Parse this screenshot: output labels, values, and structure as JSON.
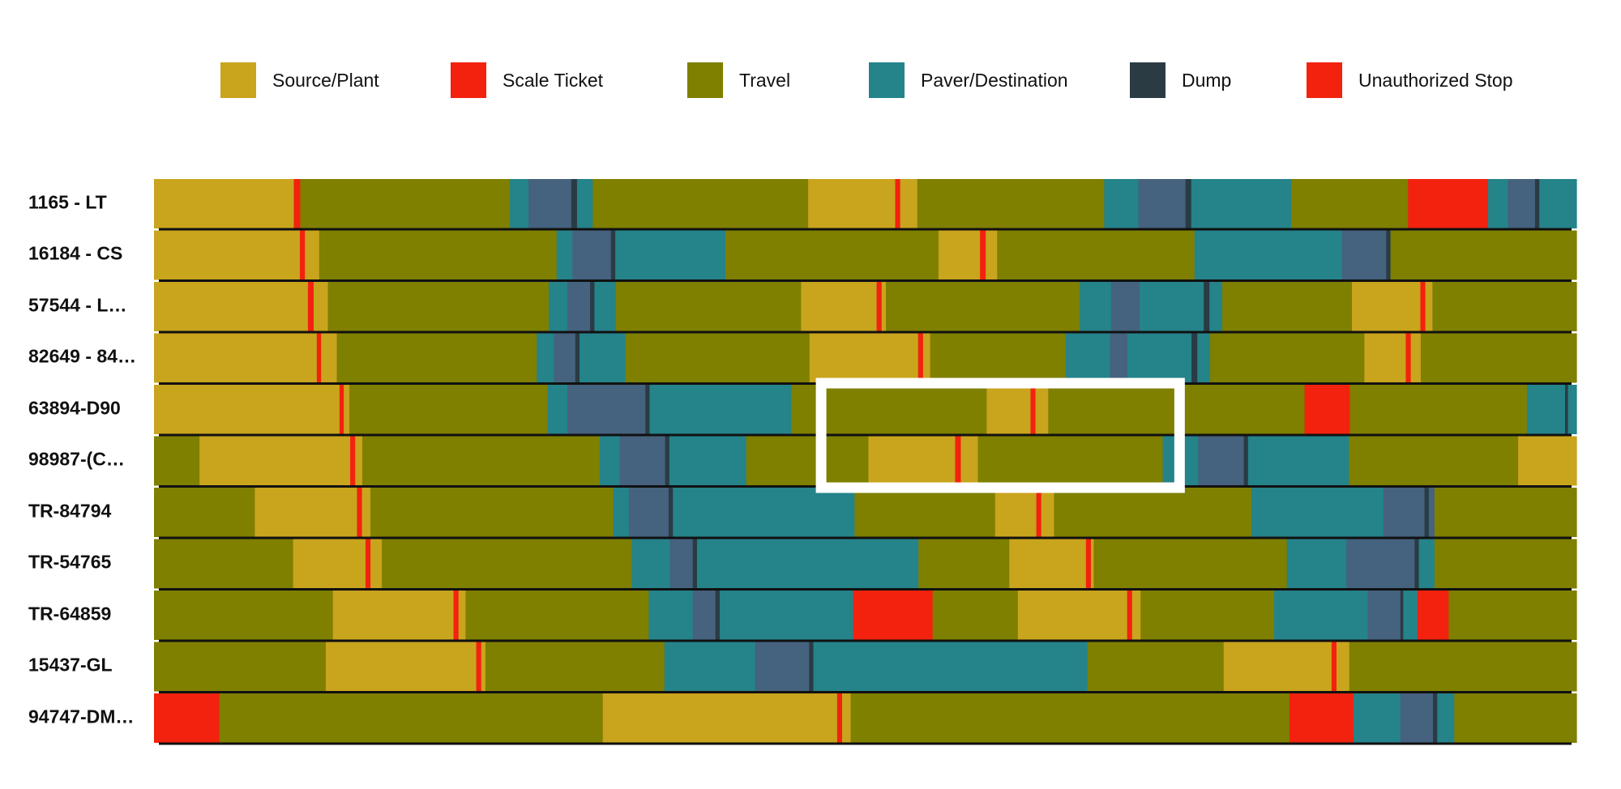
{
  "chart_data": {
    "type": "bar",
    "subtype": "horizontal-stacked-timeline",
    "title": "",
    "xlabel": "",
    "ylabel": "",
    "xlim": [
      0,
      100
    ],
    "grid": false,
    "legend_position": "top",
    "legend": [
      {
        "key": "source",
        "name": "Source/Plant",
        "color": "#C9A41D"
      },
      {
        "key": "scale",
        "name": "Scale Ticket",
        "color": "#F2220E"
      },
      {
        "key": "travel",
        "name": "Travel",
        "color": "#7F7F00"
      },
      {
        "key": "paver",
        "name": "Paver/Destination",
        "color": "#25838A"
      },
      {
        "key": "dump",
        "name": "Dump",
        "color": "#2A3B44"
      },
      {
        "key": "stop",
        "name": "Unauthorized Stop",
        "color": "#F2220E"
      }
    ],
    "segment_colors": {
      "source": "#C9A41D",
      "scale": "#F2220E",
      "travel": "#7F7F00",
      "paver": "#25838A",
      "paver_alt": "#45627E",
      "dump": "#2A3B44",
      "stop": "#F2220E"
    },
    "rows": [
      {
        "label": "1165 - LT",
        "segments": [
          [
            "source",
            9.8
          ],
          [
            "scale",
            0.45
          ],
          [
            "travel",
            14.7
          ],
          [
            "paver",
            1.3
          ],
          [
            "paver_alt",
            3.0
          ],
          [
            "dump",
            0.4
          ],
          [
            "paver",
            1.1
          ],
          [
            "travel",
            15.1
          ],
          [
            "source",
            6.1
          ],
          [
            "scale",
            0.35
          ],
          [
            "source",
            1.2
          ],
          [
            "travel",
            13.1
          ],
          [
            "paver",
            2.4
          ],
          [
            "paver_alt",
            3.3
          ],
          [
            "dump",
            0.4
          ],
          [
            "paver",
            7.0
          ],
          [
            "travel",
            8.2
          ],
          [
            "stop",
            5.6
          ],
          [
            "paver",
            1.4
          ],
          [
            "paver_alt",
            1.9
          ],
          [
            "dump",
            0.3
          ],
          [
            "paver",
            2.6
          ]
        ]
      },
      {
        "label": "16184 - CS",
        "segments": [
          [
            "source",
            10.2
          ],
          [
            "scale",
            0.35
          ],
          [
            "source",
            1.0
          ],
          [
            "travel",
            16.6
          ],
          [
            "paver",
            1.1
          ],
          [
            "paver_alt",
            2.7
          ],
          [
            "dump",
            0.3
          ],
          [
            "paver",
            7.7
          ],
          [
            "travel",
            14.9
          ],
          [
            "source",
            2.9
          ],
          [
            "scale",
            0.4
          ],
          [
            "source",
            0.8
          ],
          [
            "travel",
            13.8
          ],
          [
            "paver",
            10.3
          ],
          [
            "paver_alt",
            3.1
          ],
          [
            "dump",
            0.3
          ],
          [
            "travel",
            13.0
          ]
        ]
      },
      {
        "label": "57544 - L…",
        "segments": [
          [
            "source",
            10.8
          ],
          [
            "scale",
            0.4
          ],
          [
            "source",
            1.0
          ],
          [
            "travel",
            15.5
          ],
          [
            "paver",
            1.3
          ],
          [
            "paver_alt",
            1.6
          ],
          [
            "dump",
            0.3
          ],
          [
            "paver",
            1.5
          ],
          [
            "travel",
            13.0
          ],
          [
            "source",
            5.3
          ],
          [
            "scale",
            0.35
          ],
          [
            "source",
            0.3
          ],
          [
            "travel",
            13.6
          ],
          [
            "paver",
            2.2
          ],
          [
            "paver_alt",
            2.0
          ],
          [
            "paver",
            4.5
          ],
          [
            "dump",
            0.4
          ],
          [
            "paver",
            0.9
          ],
          [
            "travel",
            9.1
          ],
          [
            "source",
            4.8
          ],
          [
            "scale",
            0.35
          ],
          [
            "source",
            0.5
          ],
          [
            "travel",
            10.1
          ]
        ]
      },
      {
        "label": "82649 - 84…",
        "segments": [
          [
            "source",
            11.4
          ],
          [
            "scale",
            0.3
          ],
          [
            "source",
            1.1
          ],
          [
            "travel",
            14.0
          ],
          [
            "paver",
            1.2
          ],
          [
            "paver_alt",
            1.5
          ],
          [
            "dump",
            0.3
          ],
          [
            "paver",
            3.2
          ],
          [
            "travel",
            12.9
          ],
          [
            "source",
            7.6
          ],
          [
            "scale",
            0.35
          ],
          [
            "source",
            0.5
          ],
          [
            "travel",
            9.5
          ],
          [
            "paver",
            3.1
          ],
          [
            "paver_alt",
            1.2
          ],
          [
            "paver",
            4.5
          ],
          [
            "dump",
            0.4
          ],
          [
            "paver",
            0.9
          ],
          [
            "travel",
            10.8
          ],
          [
            "source",
            2.9
          ],
          [
            "scale",
            0.35
          ],
          [
            "source",
            0.7
          ],
          [
            "travel",
            10.9
          ]
        ]
      },
      {
        "label": "63894-D90",
        "segments": [
          [
            "source",
            13.1
          ],
          [
            "scale",
            0.3
          ],
          [
            "source",
            0.4
          ],
          [
            "travel",
            14.0
          ],
          [
            "paver",
            1.4
          ],
          [
            "paver_alt",
            5.5
          ],
          [
            "dump",
            0.3
          ],
          [
            "paver",
            10.0
          ],
          [
            "travel",
            13.8
          ],
          [
            "source",
            3.1
          ],
          [
            "scale",
            0.35
          ],
          [
            "source",
            0.9
          ],
          [
            "travel",
            9.2
          ],
          [
            "travel",
            8.9
          ],
          [
            "stop",
            3.2
          ],
          [
            "travel",
            12.5
          ],
          [
            "paver",
            2.7
          ],
          [
            "dump",
            0.2
          ],
          [
            "paver",
            0.6
          ]
        ]
      },
      {
        "label": "98987-(C…",
        "segments": [
          [
            "travel",
            3.2
          ],
          [
            "source",
            10.6
          ],
          [
            "scale",
            0.35
          ],
          [
            "source",
            0.5
          ],
          [
            "travel",
            16.7
          ],
          [
            "paver",
            1.4
          ],
          [
            "paver_alt",
            3.2
          ],
          [
            "dump",
            0.3
          ],
          [
            "paver",
            5.4
          ],
          [
            "travel",
            8.6
          ],
          [
            "source",
            6.1
          ],
          [
            "scale",
            0.4
          ],
          [
            "source",
            1.2
          ],
          [
            "travel",
            13.0
          ],
          [
            "paver",
            2.5
          ],
          [
            "paver_alt",
            3.2
          ],
          [
            "dump",
            0.3
          ],
          [
            "paver",
            7.1
          ],
          [
            "travel",
            11.9
          ],
          [
            "source",
            4.1
          ]
        ]
      },
      {
        "label": "TR-84794",
        "segments": [
          [
            "travel",
            7.1
          ],
          [
            "source",
            7.2
          ],
          [
            "scale",
            0.35
          ],
          [
            "source",
            0.6
          ],
          [
            "travel",
            17.1
          ],
          [
            "paver",
            1.1
          ],
          [
            "paver_alt",
            2.8
          ],
          [
            "dump",
            0.3
          ],
          [
            "paver",
            12.8
          ],
          [
            "travel",
            9.9
          ],
          [
            "source",
            2.9
          ],
          [
            "scale",
            0.35
          ],
          [
            "source",
            0.9
          ],
          [
            "travel",
            13.9
          ],
          [
            "paver",
            9.3
          ],
          [
            "paver_alt",
            2.9
          ],
          [
            "dump",
            0.3
          ],
          [
            "paver_alt",
            0.4
          ],
          [
            "travel",
            10.0
          ]
        ]
      },
      {
        "label": "TR-54765",
        "segments": [
          [
            "travel",
            9.8
          ],
          [
            "source",
            5.1
          ],
          [
            "scale",
            0.35
          ],
          [
            "source",
            0.8
          ],
          [
            "travel",
            17.6
          ],
          [
            "paver",
            2.7
          ],
          [
            "paver_alt",
            1.6
          ],
          [
            "dump",
            0.3
          ],
          [
            "paver",
            15.6
          ],
          [
            "travel",
            6.4
          ],
          [
            "source",
            5.4
          ],
          [
            "scale",
            0.35
          ],
          [
            "source",
            0.2
          ],
          [
            "travel",
            13.6
          ],
          [
            "paver",
            4.2
          ],
          [
            "paver_alt",
            4.8
          ],
          [
            "dump",
            0.3
          ],
          [
            "paver",
            1.1
          ],
          [
            "travel",
            10.0
          ]
        ]
      },
      {
        "label": "TR-64859",
        "segments": [
          [
            "travel",
            12.6
          ],
          [
            "source",
            8.5
          ],
          [
            "scale",
            0.35
          ],
          [
            "source",
            0.5
          ],
          [
            "travel",
            12.9
          ],
          [
            "paver",
            3.1
          ],
          [
            "paver_alt",
            1.6
          ],
          [
            "dump",
            0.3
          ],
          [
            "paver",
            9.4
          ],
          [
            "stop",
            5.6
          ],
          [
            "travel",
            6.0
          ],
          [
            "source",
            7.7
          ],
          [
            "scale",
            0.35
          ],
          [
            "source",
            0.6
          ],
          [
            "travel",
            9.4
          ],
          [
            "paver",
            6.6
          ],
          [
            "paver_alt",
            2.3
          ],
          [
            "dump",
            0.2
          ],
          [
            "paver",
            1.0
          ],
          [
            "stop",
            2.2
          ],
          [
            "travel",
            9.0
          ]
        ]
      },
      {
        "label": "15437-GL",
        "segments": [
          [
            "travel",
            12.1
          ],
          [
            "source",
            10.6
          ],
          [
            "scale",
            0.35
          ],
          [
            "source",
            0.3
          ],
          [
            "travel",
            12.6
          ],
          [
            "paver",
            6.4
          ],
          [
            "paver_alt",
            3.8
          ],
          [
            "dump",
            0.3
          ],
          [
            "paver",
            19.3
          ],
          [
            "travel",
            9.6
          ],
          [
            "source",
            7.6
          ],
          [
            "scale",
            0.35
          ],
          [
            "source",
            0.9
          ],
          [
            "travel",
            16.0
          ]
        ]
      },
      {
        "label": "94747-DM…",
        "segments": [
          [
            "stop",
            4.6
          ],
          [
            "travel",
            27.0
          ],
          [
            "source",
            16.5
          ],
          [
            "scale",
            0.35
          ],
          [
            "source",
            0.6
          ],
          [
            "travel",
            30.9
          ],
          [
            "stop",
            4.5
          ],
          [
            "paver",
            3.3
          ],
          [
            "paver_alt",
            2.3
          ],
          [
            "dump",
            0.3
          ],
          [
            "paver",
            1.2
          ],
          [
            "travel",
            8.6
          ]
        ]
      }
    ],
    "annotation": {
      "type": "highlight-box",
      "x_range": [
        46.9,
        72.1
      ],
      "rows": [
        "63894-D90",
        "98987-(C…"
      ]
    }
  }
}
